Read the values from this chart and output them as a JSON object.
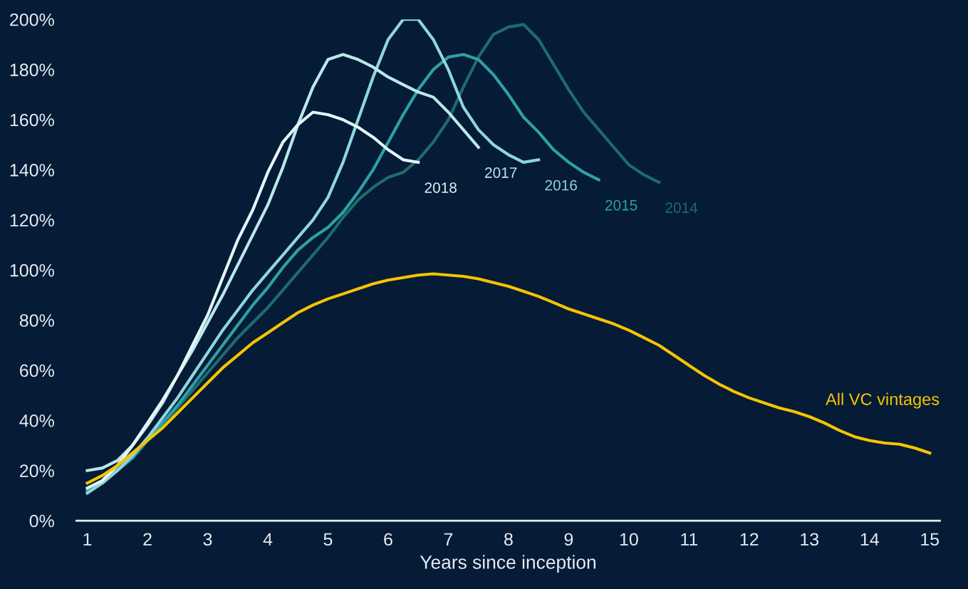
{
  "chart_data": {
    "type": "line",
    "xlabel": "Years since inception",
    "xlim": [
      0.82,
      15.17
    ],
    "xticks": [
      1,
      2,
      3,
      4,
      5,
      6,
      7,
      8,
      9,
      10,
      11,
      12,
      13,
      14,
      15
    ],
    "ylim": [
      0,
      200
    ],
    "yticks": [
      {
        "value": 0,
        "label": "0%"
      },
      {
        "value": 20,
        "label": "20%"
      },
      {
        "value": 40,
        "label": "40%"
      },
      {
        "value": 60,
        "label": "60%"
      },
      {
        "value": 80,
        "label": "80%"
      },
      {
        "value": 100,
        "label": "100%"
      },
      {
        "value": 120,
        "label": "120%"
      },
      {
        "value": 140,
        "label": "140%"
      },
      {
        "value": 160,
        "label": "160%"
      },
      {
        "value": 180,
        "label": "180%"
      },
      {
        "value": 200,
        "label": "200%"
      }
    ],
    "grid": false,
    "legend": false,
    "marker": "none",
    "line_style": "solid",
    "series": [
      {
        "name": "2014",
        "color": "#1f6b6b",
        "x": [
          1,
          1.25,
          1.5,
          1.75,
          2,
          2.25,
          2.5,
          2.75,
          3,
          3.25,
          3.5,
          3.75,
          4,
          4.25,
          4.5,
          4.75,
          5,
          5.25,
          5.5,
          5.75,
          6,
          6.25,
          6.5,
          6.75,
          7,
          7.25,
          7.5,
          7.75,
          8,
          8.25,
          8.5,
          8.75,
          9,
          9.25,
          9.5,
          9.75,
          10,
          10.25,
          10.5
        ],
        "values": [
          13,
          16,
          21,
          26,
          32,
          38,
          45,
          52,
          59,
          66,
          73,
          79,
          85,
          92,
          99,
          106,
          113,
          121,
          128,
          133,
          137,
          139,
          144,
          151,
          160,
          173,
          185,
          194,
          197,
          198,
          192,
          182,
          172,
          163,
          156,
          149,
          142,
          138,
          135
        ]
      },
      {
        "name": "2015",
        "color": "#2f9fa6",
        "x": [
          1,
          1.25,
          1.5,
          1.75,
          2,
          2.25,
          2.5,
          2.75,
          3,
          3.25,
          3.5,
          3.75,
          4,
          4.25,
          4.5,
          4.75,
          5,
          5.25,
          5.5,
          5.75,
          6,
          6.25,
          6.5,
          6.75,
          7,
          7.25,
          7.5,
          7.75,
          8,
          8.25,
          8.5,
          8.75,
          9,
          9.25,
          9.5
        ],
        "values": [
          12,
          15,
          20,
          25,
          32,
          39,
          46,
          54,
          62,
          70,
          78,
          86,
          93,
          101,
          108,
          113,
          117,
          123,
          131,
          140,
          151,
          162,
          172,
          180,
          185,
          186,
          184,
          178,
          170,
          161,
          155,
          148,
          143,
          139,
          136
        ]
      },
      {
        "name": "2016",
        "color": "#8fd6df",
        "x": [
          1,
          1.25,
          1.5,
          1.75,
          2,
          2.25,
          2.5,
          2.75,
          3,
          3.25,
          3.5,
          3.75,
          4,
          4.25,
          4.5,
          4.75,
          5,
          5.25,
          5.5,
          5.75,
          6,
          6.25,
          6.5,
          6.75,
          7,
          7.25,
          7.5,
          7.75,
          8,
          8.25,
          8.5
        ],
        "values": [
          11,
          15,
          20,
          26,
          33,
          41,
          49,
          58,
          67,
          76,
          84,
          92,
          99,
          106,
          113,
          120,
          129,
          143,
          160,
          177,
          192,
          200,
          200,
          192,
          180,
          165,
          156,
          150,
          146,
          143,
          144
        ]
      },
      {
        "name": "2017",
        "color": "#b9e8ec",
        "x": [
          1,
          1.25,
          1.5,
          1.75,
          2,
          2.25,
          2.5,
          2.75,
          3,
          3.25,
          3.5,
          3.75,
          4,
          4.25,
          4.5,
          4.75,
          5,
          5.25,
          5.5,
          5.75,
          6,
          6.25,
          6.5,
          6.75,
          7,
          7.25,
          7.5
        ],
        "values": [
          20,
          21,
          24,
          30,
          38,
          47,
          58,
          68,
          79,
          90,
          102,
          114,
          126,
          141,
          158,
          173,
          184,
          186,
          184,
          181,
          177,
          174,
          171,
          169,
          163,
          156,
          149
        ]
      },
      {
        "name": "2018",
        "color": "#e3f5f7",
        "x": [
          1,
          1.25,
          1.5,
          1.75,
          2,
          2.25,
          2.5,
          2.75,
          3,
          3.25,
          3.5,
          3.75,
          4,
          4.25,
          4.5,
          4.75,
          5,
          5.25,
          5.5,
          5.75,
          6,
          6.25,
          6.5
        ],
        "values": [
          13,
          16,
          22,
          30,
          39,
          48,
          58,
          70,
          82,
          97,
          112,
          124,
          139,
          151,
          158,
          163,
          162,
          160,
          157,
          153,
          148,
          144,
          143
        ]
      },
      {
        "name": "All VC vintages",
        "color": "#f5c400",
        "x": [
          1,
          1.25,
          1.5,
          1.75,
          2,
          2.25,
          2.5,
          2.75,
          3,
          3.25,
          3.5,
          3.75,
          4,
          4.25,
          4.5,
          4.75,
          5,
          5.25,
          5.5,
          5.75,
          6,
          6.25,
          6.5,
          6.75,
          7,
          7.25,
          7.5,
          7.75,
          8,
          8.25,
          8.5,
          8.75,
          9,
          9.25,
          9.5,
          9.75,
          10,
          10.25,
          10.5,
          10.75,
          11,
          11.25,
          11.5,
          11.75,
          12,
          12.25,
          12.5,
          12.75,
          13,
          13.25,
          13.5,
          13.75,
          14,
          14.25,
          14.5,
          14.75,
          15
        ],
        "values": [
          15,
          18,
          22,
          27,
          32,
          37,
          43,
          49,
          55,
          61,
          66,
          71,
          75,
          79,
          83,
          86,
          88.5,
          90.5,
          92.5,
          94.5,
          96,
          97,
          98,
          98.5,
          98,
          97.5,
          96.5,
          95,
          93.5,
          91.5,
          89.5,
          87,
          84.5,
          82.5,
          80.5,
          78.5,
          76,
          73,
          70,
          66,
          62,
          58,
          54.5,
          51.5,
          49,
          47,
          45,
          43.5,
          41.5,
          39,
          36,
          33.5,
          32,
          31,
          30.5,
          29,
          27
        ]
      }
    ]
  }
}
